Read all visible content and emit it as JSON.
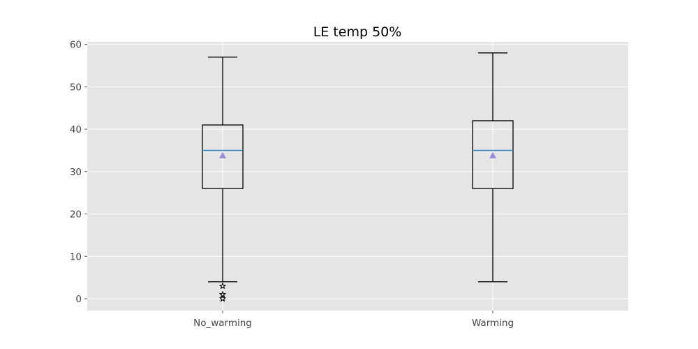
{
  "chart_data": {
    "type": "box",
    "title": "LE temp 50%",
    "xlabel": "",
    "ylabel": "",
    "ylim": [
      -2.8,
      60.6
    ],
    "yticks": [
      0,
      10,
      20,
      30,
      40,
      50,
      60
    ],
    "grid": true,
    "style": "ggplot",
    "categories": [
      "No_warming",
      "Warming"
    ],
    "boxes": [
      {
        "category": "No_warming",
        "whisker_low": 4,
        "q1": 26,
        "median": 35,
        "q3": 41,
        "whisker_high": 57,
        "mean": 33.8,
        "outliers": [
          3,
          1,
          0
        ]
      },
      {
        "category": "Warming",
        "whisker_low": 4,
        "q1": 26,
        "median": 35,
        "q3": 42,
        "whisker_high": 58,
        "mean": 33.8,
        "outliers": []
      }
    ],
    "colors": {
      "background": "#e5e5e5",
      "grid": "#ffffff",
      "box_line": "#000000",
      "median": "#348abd",
      "mean_marker": "#988ed5"
    }
  }
}
